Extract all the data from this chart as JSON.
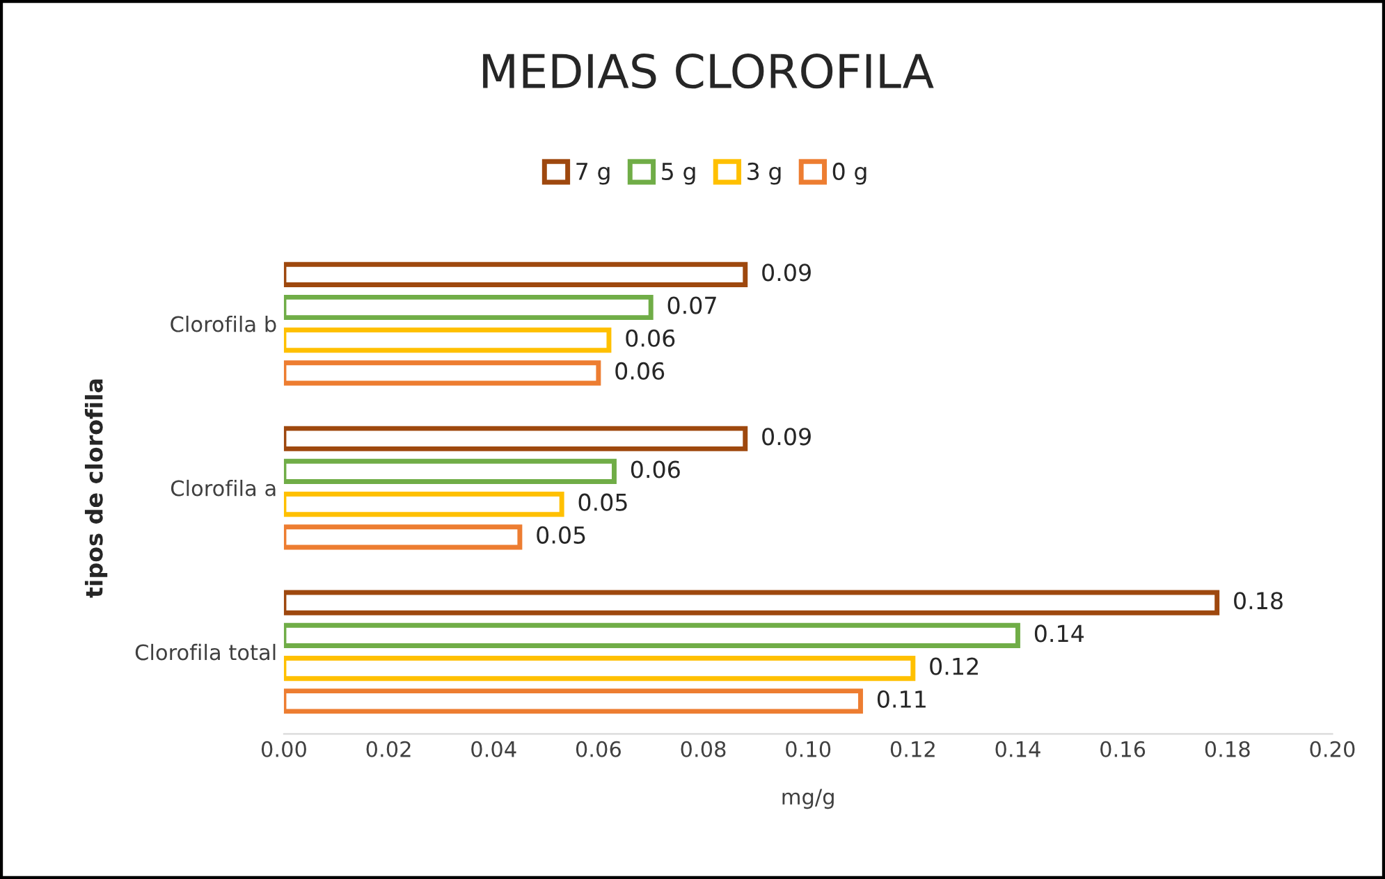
{
  "chart_data": {
    "type": "bar",
    "orientation": "horizontal",
    "title": "MEDIAS CLOROFILA",
    "xlabel": "mg/g",
    "ylabel": "tipos de clorofila",
    "categories": [
      "Clorofila b",
      "Clorofila a",
      "Clorofila total"
    ],
    "series": [
      {
        "name": "7 g",
        "color": "#9e480e",
        "values": [
          0.088,
          0.088,
          0.178
        ],
        "value_labels": [
          "0.09",
          "0.09",
          "0.18"
        ]
      },
      {
        "name": "5 g",
        "color": "#70ad47",
        "values": [
          0.07,
          0.063,
          0.14
        ],
        "value_labels": [
          "0.07",
          "0.06",
          "0.14"
        ]
      },
      {
        "name": "3 g",
        "color": "#ffc000",
        "values": [
          0.062,
          0.053,
          0.12
        ],
        "value_labels": [
          "0.06",
          "0.05",
          "0.12"
        ]
      },
      {
        "name": "0 g",
        "color": "#ed7d31",
        "values": [
          0.06,
          0.045,
          0.11
        ],
        "value_labels": [
          "0.06",
          "0.05",
          "0.11"
        ]
      }
    ],
    "xlim": [
      0,
      0.2
    ],
    "xticks": [
      {
        "value": 0,
        "label": "0.00"
      },
      {
        "value": 0.02,
        "label": "0.02"
      },
      {
        "value": 0.04,
        "label": "0.04"
      },
      {
        "value": 0.06,
        "label": "0.06"
      },
      {
        "value": 0.08,
        "label": "0.08"
      },
      {
        "value": 0.1,
        "label": "0.10"
      },
      {
        "value": 0.12,
        "label": "0.12"
      },
      {
        "value": 0.14,
        "label": "0.14"
      },
      {
        "value": 0.16,
        "label": "0.16"
      },
      {
        "value": 0.18,
        "label": "0.18"
      },
      {
        "value": 0.2,
        "label": "0.20"
      }
    ],
    "grid": false,
    "legend": "top"
  }
}
